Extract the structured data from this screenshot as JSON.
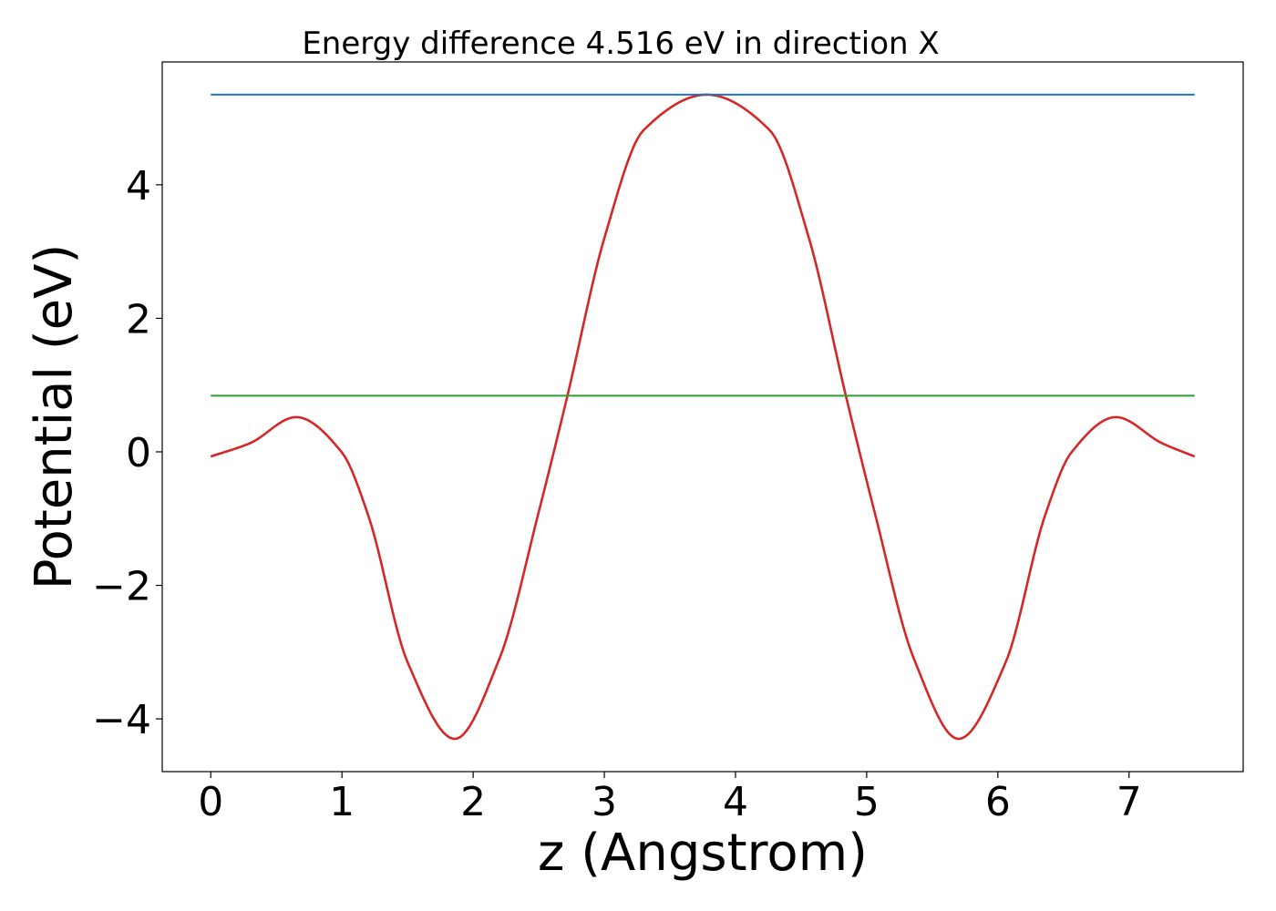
{
  "chart_data": {
    "type": "line",
    "title": "Energy difference 4.516 eV in direction X",
    "xlabel": "z (Angstrom)",
    "ylabel": "Potential (eV)",
    "xlim": [
      -0.37,
      7.87
    ],
    "ylim": [
      -4.79,
      5.84
    ],
    "xticks": [
      0,
      1,
      2,
      3,
      4,
      5,
      6,
      7
    ],
    "xtick_labels": [
      "0",
      "1",
      "2",
      "3",
      "4",
      "5",
      "6",
      "7"
    ],
    "yticks": [
      -4,
      -2,
      0,
      2,
      4
    ],
    "ytick_labels": [
      "−4",
      "−2",
      "0",
      "2",
      "4"
    ],
    "grid": false,
    "legend": false,
    "series": [
      {
        "color": "#d62728",
        "style": "curve",
        "x": [
          0,
          0.3,
          0.65,
          1.0,
          1.2,
          1.5,
          1.86,
          2.2,
          2.5,
          2.72,
          3.0,
          3.3,
          3.78,
          4.26,
          4.56,
          4.84,
          5.06,
          5.36,
          5.7,
          6.06,
          6.36,
          6.56,
          6.9,
          7.25,
          7.5
        ],
        "y": [
          -0.07,
          0.13,
          0.52,
          -0.01,
          -0.95,
          -3.15,
          -4.3,
          -3.1,
          -0.9,
          0.85,
          3.2,
          4.82,
          5.35,
          4.82,
          3.2,
          0.85,
          -0.9,
          -3.1,
          -4.3,
          -3.15,
          -0.95,
          -0.01,
          0.52,
          0.13,
          -0.07
        ]
      },
      {
        "color": "#1f77b4",
        "style": "hline",
        "x": [
          0,
          7.5
        ],
        "y": [
          5.35,
          5.35
        ]
      },
      {
        "color": "#2ca02c",
        "style": "hline",
        "x": [
          0,
          7.5
        ],
        "y": [
          0.84,
          0.84
        ]
      }
    ]
  }
}
